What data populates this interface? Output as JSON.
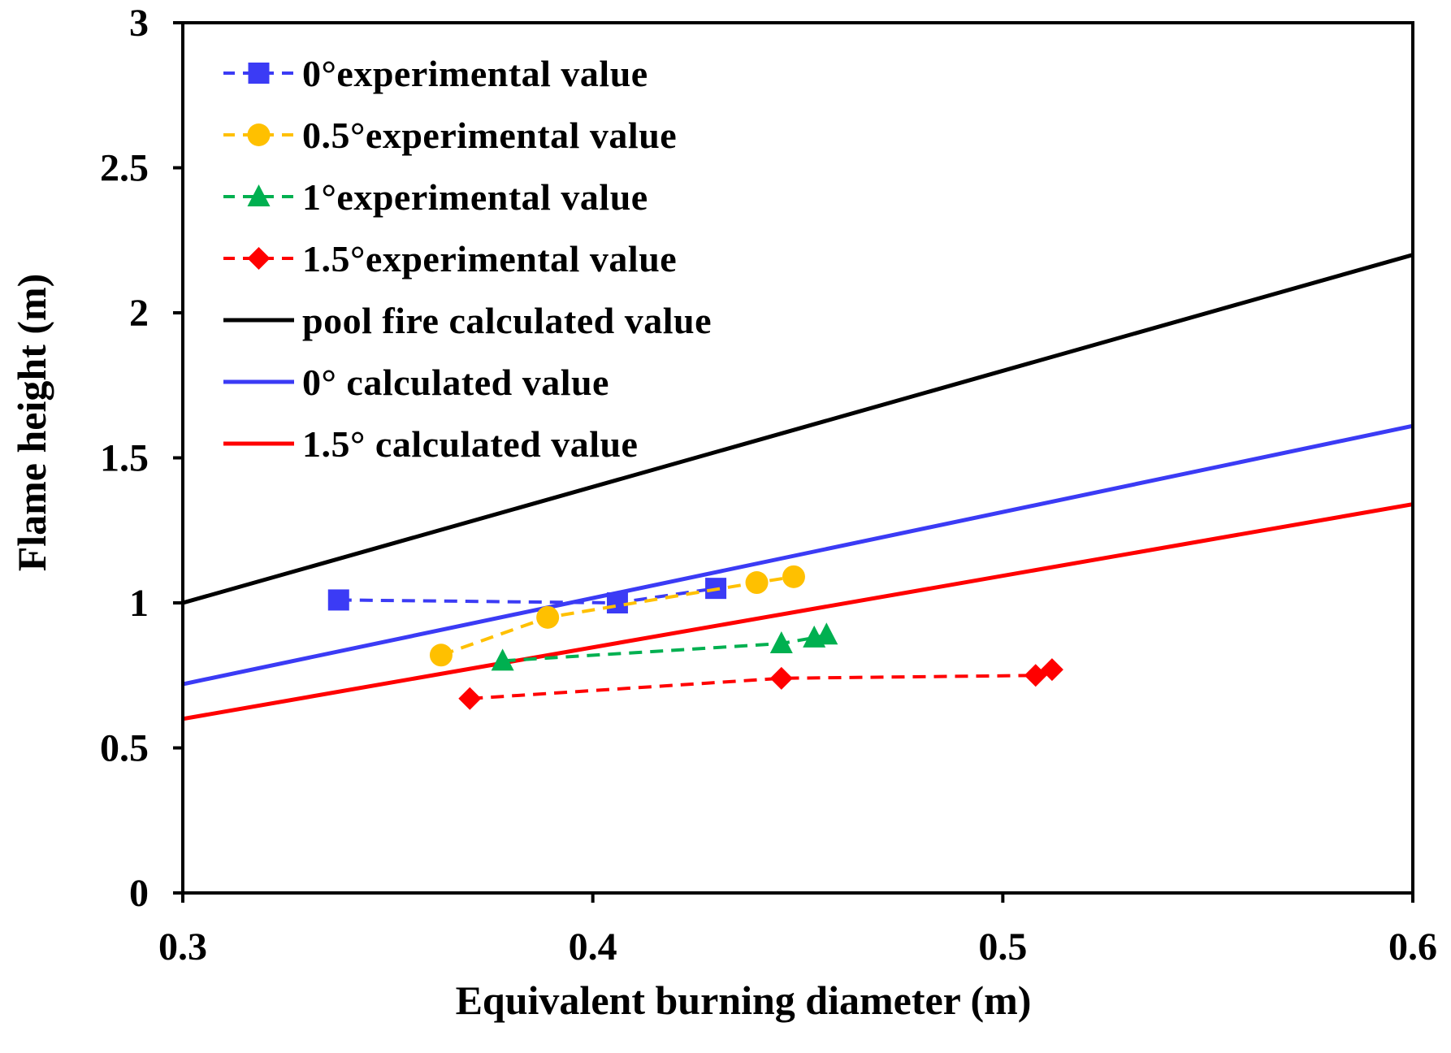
{
  "chart_data": {
    "type": "line",
    "title": "",
    "xlabel": "Equivalent burning diameter (m)",
    "ylabel": "Flame height (m)",
    "xlim": [
      0.3,
      0.6
    ],
    "ylim": [
      0,
      3
    ],
    "xticks": [
      0.3,
      0.4,
      0.5,
      0.6
    ],
    "xtick_labels": [
      "0.3",
      "0.4",
      "0.5",
      "0.6"
    ],
    "yticks": [
      0,
      0.5,
      1,
      1.5,
      2,
      2.5,
      3
    ],
    "ytick_labels": [
      "0",
      "0.5",
      "1",
      "1.5",
      "2",
      "2.5",
      "3"
    ],
    "grid": false,
    "legend_position": "top-left",
    "series": [
      {
        "name": "0°experimental value",
        "style": "dashed",
        "marker": "square",
        "color": "#3b3bf5",
        "x": [
          0.338,
          0.406,
          0.43
        ],
        "y": [
          1.01,
          1.0,
          1.05
        ]
      },
      {
        "name": "0.5°experimental value",
        "style": "dashed",
        "marker": "circle",
        "color": "#ffc000",
        "x": [
          0.363,
          0.389,
          0.44,
          0.449
        ],
        "y": [
          0.82,
          0.95,
          1.07,
          1.09
        ]
      },
      {
        "name": "1°experimental value",
        "style": "dashed",
        "marker": "triangle",
        "color": "#00b050",
        "x": [
          0.378,
          0.446,
          0.454,
          0.457
        ],
        "y": [
          0.8,
          0.86,
          0.88,
          0.89
        ]
      },
      {
        "name": "1.5°experimental value",
        "style": "dashed",
        "marker": "diamond",
        "color": "#ff0000",
        "x": [
          0.37,
          0.446,
          0.508,
          0.512
        ],
        "y": [
          0.67,
          0.74,
          0.75,
          0.77
        ]
      },
      {
        "name": "pool fire calculated value",
        "style": "solid",
        "marker": "none",
        "color": "#000000",
        "x": [
          0.3,
          0.6
        ],
        "y": [
          1.0,
          2.2
        ]
      },
      {
        "name": "0° calculated value",
        "style": "solid",
        "marker": "none",
        "color": "#3b3bf5",
        "x": [
          0.3,
          0.6
        ],
        "y": [
          0.72,
          1.61
        ]
      },
      {
        "name": "1.5° calculated value",
        "style": "solid",
        "marker": "none",
        "color": "#ff0000",
        "x": [
          0.3,
          0.6
        ],
        "y": [
          0.6,
          1.34
        ]
      }
    ]
  }
}
